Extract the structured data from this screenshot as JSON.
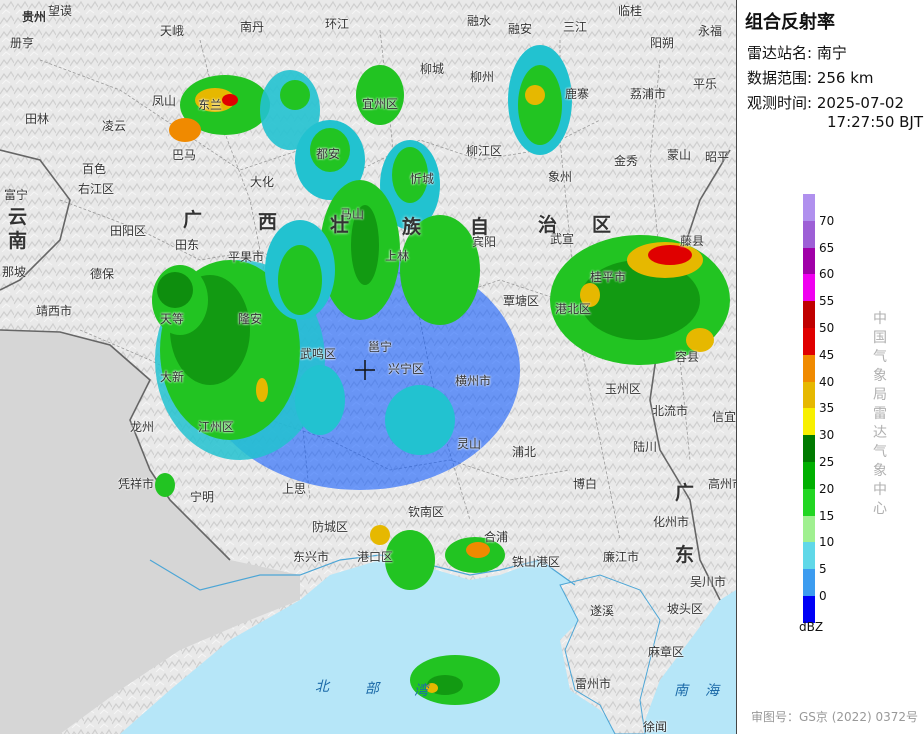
{
  "panel": {
    "title": "组合反射率",
    "station_label": "雷达站名:",
    "station_value": "南宁",
    "range_label": "数据范围:",
    "range_value": "256 km",
    "time_label": "观测时间:",
    "time_date": "2025-07-02",
    "time_clock": "17:27:50 BJT",
    "agency": "中国气象局雷达气象中心",
    "unit": "dBZ",
    "approval": "审图号：GS京 (2022) 0372号"
  },
  "legend": [
    {
      "value": "70",
      "color": "#9d5fd6"
    },
    {
      "value": "65",
      "color": "#a000a8"
    },
    {
      "value": "60",
      "color": "#f000f0"
    },
    {
      "value": "55",
      "color": "#c00000"
    },
    {
      "value": "50",
      "color": "#e00000"
    },
    {
      "value": "45",
      "color": "#f08a00"
    },
    {
      "value": "40",
      "color": "#e6b800"
    },
    {
      "value": "35",
      "color": "#f8f000"
    },
    {
      "value": "30",
      "color": "#007a00"
    },
    {
      "value": "25",
      "color": "#00b000"
    },
    {
      "value": "20",
      "color": "#22d622"
    },
    {
      "value": "15",
      "color": "#a0f090"
    },
    {
      "value": "10",
      "color": "#60d8e8"
    },
    {
      "value": "5",
      "color": "#3c9cf0"
    },
    {
      "value": "0",
      "color": "#0000f6"
    }
  ],
  "legend_top_color": "#b090ee",
  "map": {
    "cities": [
      "贵州",
      "望谟",
      "册亨",
      "天峨",
      "南丹",
      "环江",
      "融水",
      "融安",
      "三江",
      "临桂",
      "阳朔",
      "永福",
      "凤山",
      "东兰",
      "巴马",
      "宜州区",
      "柳城",
      "柳州",
      "鹿寨",
      "荔浦市",
      "平乐",
      "田林",
      "凌云",
      "都安",
      "忻城",
      "柳江区",
      "象州",
      "蒙山",
      "昭平",
      "百色",
      "右江区",
      "大化",
      "马山",
      "宾阳",
      "金秀",
      "富宁",
      "田阳区",
      "田东",
      "平果市",
      "上林",
      "武宣",
      "桂平市",
      "那坡",
      "德保",
      "靖西市",
      "天等",
      "隆安",
      "覃塘区",
      "港北区",
      "藤县",
      "大新",
      "江州区",
      "武鸣区",
      "邕宁",
      "横州市",
      "兴宁区",
      "玉州区",
      "龙州",
      "凭祥市",
      "宁明",
      "上思",
      "防城区",
      "东兴市",
      "港口区",
      "钦南区",
      "灵山",
      "浦北",
      "博白",
      "北流市",
      "容县",
      "陆川",
      "合浦",
      "铁山港区",
      "廉江市",
      "遂溪",
      "化州市",
      "高州市",
      "信宜市",
      "吴川市",
      "麻章区",
      "雷州市",
      "徐闻",
      "坡头区"
    ],
    "regions": [
      "广",
      "西",
      "壮",
      "族",
      "自",
      "治",
      "区",
      "广",
      "东",
      "云",
      "南"
    ],
    "sea": [
      "北",
      "部",
      "湾",
      "南",
      "海"
    ]
  }
}
